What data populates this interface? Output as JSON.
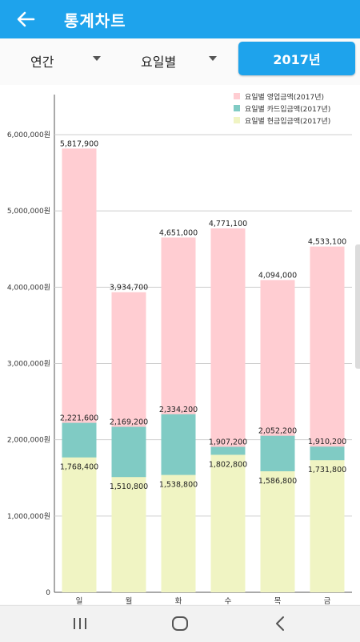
{
  "appbar": {
    "title": "통계차트",
    "back_icon": "arrow-left-icon"
  },
  "filters": {
    "period": "연간",
    "grouping": "요일별",
    "year": "2017년"
  },
  "colors": {
    "accent": "#1ea3ec",
    "sales": "#ffcdd2",
    "card": "#80cbc4",
    "cash": "#f0f4c3"
  },
  "chart_data": {
    "type": "bar",
    "stacked": false,
    "categories": [
      "일",
      "월",
      "화",
      "수",
      "목",
      "금"
    ],
    "series": [
      {
        "name": "요일별 영업금액(2017년)",
        "values": [
          5817900,
          3934700,
          4651000,
          4771100,
          4094000,
          4533100
        ],
        "labels": [
          "5,817,900",
          "3,934,700",
          "4,651,000",
          "4,771,100",
          "4,094,000",
          "4,533,100"
        ]
      },
      {
        "name": "요일별 카드입금액(2017년)",
        "values": [
          2221600,
          2169200,
          2334200,
          1907200,
          2052200,
          1910200
        ],
        "labels": [
          "2,221,600",
          "2,169,200",
          "2,334,200",
          "1,907,200",
          "2,052,200",
          "1,910,200"
        ]
      },
      {
        "name": "요일별 현금입금액(2017년)",
        "values": [
          1768400,
          1510800,
          1538800,
          1802800,
          1586800,
          1731800
        ],
        "labels": [
          "1,768,400",
          "1,510,800",
          "1,538,800",
          "1,802,800",
          "1,586,800",
          "1,731,800"
        ]
      }
    ],
    "y_ticks": [
      0,
      1000000,
      2000000,
      3000000,
      4000000,
      5000000,
      6000000
    ],
    "y_tick_labels": [
      "0",
      "1,000,000원",
      "2,000,000원",
      "3,000,000원",
      "4,000,000원",
      "5,000,000원",
      "6,000,000원"
    ],
    "ylim": [
      0,
      6000000
    ],
    "grid": true,
    "legend_position": "top-right"
  }
}
